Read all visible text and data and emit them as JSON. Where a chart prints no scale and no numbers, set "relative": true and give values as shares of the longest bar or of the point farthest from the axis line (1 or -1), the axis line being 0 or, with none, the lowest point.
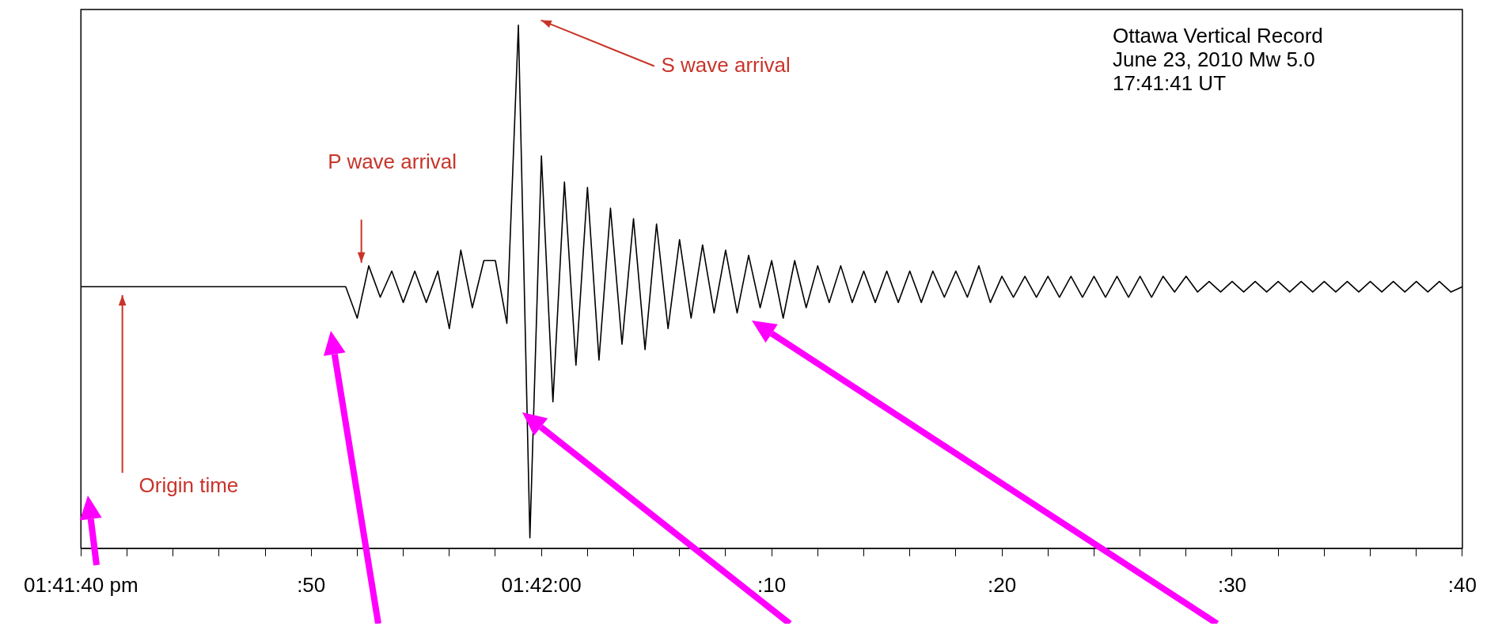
{
  "chart_data": {
    "type": "line",
    "relative": true,
    "color": "#000000",
    "marker": "none",
    "categories": [
      "01:41:40 pm",
      null,
      null,
      null,
      null,
      null,
      null,
      null,
      null,
      null,
      null,
      null,
      null,
      null,
      null,
      null,
      null,
      null,
      null,
      null,
      ":50",
      null,
      null,
      null,
      null,
      null,
      null,
      null,
      null,
      null,
      null,
      null,
      null,
      null,
      null,
      null,
      null,
      null,
      null,
      null,
      "01:42:00",
      null,
      null,
      null,
      null,
      null,
      null,
      null,
      null,
      null,
      null,
      null,
      null,
      null,
      null,
      null,
      null,
      null,
      null,
      null,
      ":10",
      null,
      null,
      null,
      null,
      null,
      null,
      null,
      null,
      null,
      null,
      null,
      null,
      null,
      null,
      null,
      null,
      null,
      null,
      null,
      ":20",
      null,
      null,
      null,
      null,
      null,
      null,
      null,
      null,
      null,
      null,
      null,
      null,
      null,
      null,
      null,
      null,
      null,
      null,
      null,
      ":30",
      null,
      null,
      null,
      null,
      null,
      null,
      null,
      null,
      null,
      null,
      null,
      null,
      null,
      null,
      null,
      null,
      null,
      null,
      null,
      ":40"
    ],
    "values": [
      0.5,
      0.5,
      0.5,
      0.5,
      0.5,
      0.5,
      0.5,
      0.5,
      0.5,
      0.5,
      0.5,
      0.5,
      0.5,
      0.5,
      0.5,
      0.5,
      0.5,
      0.5,
      0.5,
      0.5,
      0.5,
      0.5,
      0.5,
      0.5,
      0.44,
      0.54,
      0.48,
      0.53,
      0.47,
      0.53,
      0.47,
      0.53,
      0.42,
      0.57,
      0.46,
      0.55,
      0.55,
      0.43,
      1.0,
      0.02,
      0.75,
      0.28,
      0.7,
      0.35,
      0.69,
      0.36,
      0.65,
      0.39,
      0.63,
      0.38,
      0.62,
      0.42,
      0.59,
      0.44,
      0.58,
      0.45,
      0.57,
      0.45,
      0.56,
      0.46,
      0.55,
      0.44,
      0.55,
      0.46,
      0.54,
      0.47,
      0.54,
      0.47,
      0.53,
      0.47,
      0.53,
      0.47,
      0.53,
      0.47,
      0.53,
      0.48,
      0.53,
      0.48,
      0.54,
      0.47,
      0.52,
      0.48,
      0.52,
      0.48,
      0.52,
      0.48,
      0.52,
      0.48,
      0.52,
      0.48,
      0.52,
      0.48,
      0.52,
      0.48,
      0.52,
      0.49,
      0.52,
      0.49,
      0.51,
      0.49,
      0.51,
      0.49,
      0.51,
      0.49,
      0.51,
      0.49,
      0.51,
      0.49,
      0.51,
      0.49,
      0.51,
      0.49,
      0.51,
      0.49,
      0.51,
      0.49,
      0.51,
      0.49,
      0.51,
      0.49,
      0.5
    ],
    "annotations": [
      "Ottawa Vertical Record",
      "June 23, 2010 Mw 5.0",
      "17:41:41 UT",
      "Origin time",
      "P wave arrival",
      "S wave arrival"
    ]
  }
}
